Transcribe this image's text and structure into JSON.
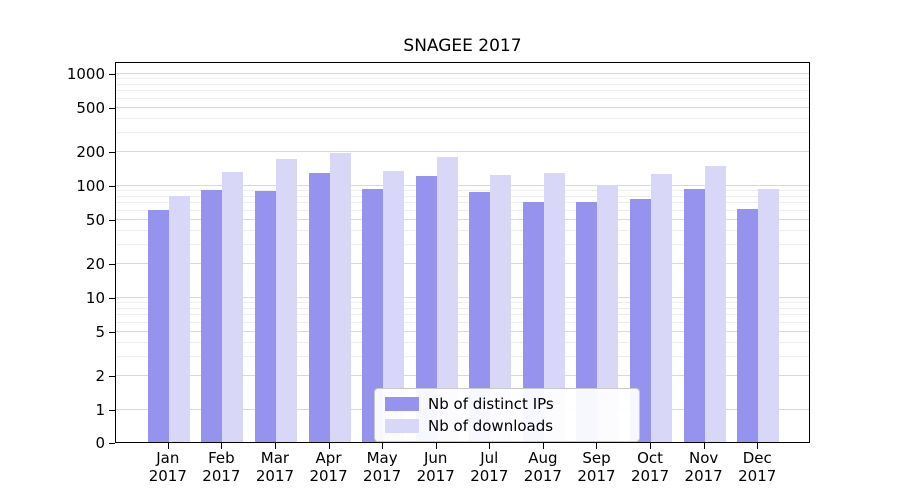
{
  "chart_data": {
    "type": "bar",
    "title": "SNAGEE 2017",
    "categories": [
      "Jan 2017",
      "Feb 2017",
      "Mar 2017",
      "Apr 2017",
      "May 2017",
      "Jun 2017",
      "Jul 2017",
      "Aug 2017",
      "Sep 2017",
      "Oct 2017",
      "Nov 2017",
      "Dec 2017"
    ],
    "series": [
      {
        "name": "Nb of distinct IPs",
        "color": "#9593ee",
        "values": [
          60,
          90,
          88,
          128,
          92,
          120,
          87,
          70,
          70,
          75,
          92,
          61
        ]
      },
      {
        "name": "Nb of downloads",
        "color": "#d9d7f8",
        "values": [
          80,
          130,
          170,
          195,
          133,
          178,
          122,
          128,
          100,
          125,
          148,
          92
        ]
      }
    ],
    "xlabel": "",
    "ylabel": "",
    "yscale": "symlog",
    "yticks": [
      0,
      1,
      2,
      5,
      10,
      20,
      50,
      100,
      200,
      500,
      1000
    ],
    "ylim": [
      0,
      1000
    ],
    "grid": true,
    "legend_position": "lower center",
    "colors": {
      "grid_major": "#d9d9d9",
      "grid_minor": "#eeeeee",
      "axis": "#000000",
      "background": "#ffffff",
      "legend_border": "#c8c8c8"
    }
  }
}
